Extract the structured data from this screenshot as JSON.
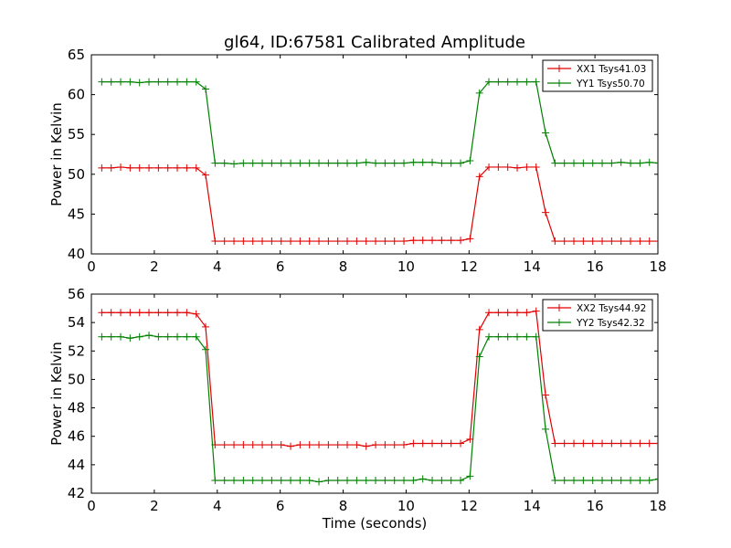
{
  "figure": {
    "title": "gl64, ID:67581 Calibrated Amplitude"
  },
  "chart_data": [
    {
      "type": "line",
      "title": "gl64, ID:67581 Calibrated Amplitude",
      "xlabel": "",
      "ylabel": "Power in Kelvin",
      "xlim": [
        0,
        18
      ],
      "ylim": [
        40,
        65
      ],
      "xticks": [
        0,
        2,
        4,
        6,
        8,
        10,
        12,
        14,
        16,
        18
      ],
      "yticks": [
        40,
        45,
        50,
        55,
        60,
        65
      ],
      "grid": false,
      "legend_position": "top-right",
      "x": [
        0.33,
        0.63,
        0.93,
        1.23,
        1.53,
        1.83,
        2.13,
        2.43,
        2.73,
        3.03,
        3.33,
        3.63,
        3.93,
        4.23,
        4.53,
        4.83,
        5.13,
        5.43,
        5.73,
        6.03,
        6.33,
        6.63,
        6.93,
        7.23,
        7.53,
        7.83,
        8.13,
        8.43,
        8.73,
        9.03,
        9.33,
        9.63,
        9.93,
        10.23,
        10.53,
        10.83,
        11.13,
        11.43,
        11.73,
        12.03,
        12.33,
        12.63,
        12.93,
        13.23,
        13.53,
        13.83,
        14.13,
        14.43,
        14.73,
        15.03,
        15.33,
        15.63,
        15.93,
        16.23,
        16.53,
        16.83,
        17.13,
        17.43,
        17.73,
        18.03
      ],
      "series": [
        {
          "name": "XX1 Tsys41.03",
          "color": "#e00000",
          "values": [
            50.8,
            50.8,
            50.9,
            50.8,
            50.8,
            50.8,
            50.8,
            50.8,
            50.8,
            50.8,
            50.8,
            49.9,
            41.6,
            41.6,
            41.6,
            41.6,
            41.6,
            41.6,
            41.6,
            41.6,
            41.6,
            41.6,
            41.6,
            41.6,
            41.6,
            41.6,
            41.6,
            41.6,
            41.6,
            41.6,
            41.6,
            41.6,
            41.6,
            41.7,
            41.7,
            41.7,
            41.7,
            41.7,
            41.7,
            41.9,
            49.7,
            50.9,
            50.9,
            50.9,
            50.8,
            50.9,
            50.9,
            45.2,
            41.6,
            41.6,
            41.6,
            41.6,
            41.6,
            41.6,
            41.6,
            41.6,
            41.6,
            41.6,
            41.6,
            41.6
          ]
        },
        {
          "name": "YY1 Tsys50.70",
          "color": "#008000",
          "values": [
            61.6,
            61.6,
            61.6,
            61.6,
            61.5,
            61.6,
            61.6,
            61.6,
            61.6,
            61.6,
            61.6,
            60.7,
            51.4,
            51.4,
            51.3,
            51.4,
            51.4,
            51.4,
            51.4,
            51.4,
            51.4,
            51.4,
            51.4,
            51.4,
            51.4,
            51.4,
            51.4,
            51.4,
            51.5,
            51.4,
            51.4,
            51.4,
            51.4,
            51.5,
            51.5,
            51.5,
            51.4,
            51.4,
            51.4,
            51.7,
            60.2,
            61.6,
            61.6,
            61.6,
            61.6,
            61.6,
            61.6,
            55.2,
            51.4,
            51.4,
            51.4,
            51.4,
            51.4,
            51.4,
            51.4,
            51.5,
            51.4,
            51.4,
            51.5,
            51.4
          ]
        }
      ]
    },
    {
      "type": "line",
      "title": "",
      "xlabel": "Time (seconds)",
      "ylabel": "Power in Kelvin",
      "xlim": [
        0,
        18
      ],
      "ylim": [
        42,
        56
      ],
      "xticks": [
        0,
        2,
        4,
        6,
        8,
        10,
        12,
        14,
        16,
        18
      ],
      "yticks": [
        42,
        44,
        46,
        48,
        50,
        52,
        54,
        56
      ],
      "grid": false,
      "legend_position": "top-right",
      "x": [
        0.33,
        0.63,
        0.93,
        1.23,
        1.53,
        1.83,
        2.13,
        2.43,
        2.73,
        3.03,
        3.33,
        3.63,
        3.93,
        4.23,
        4.53,
        4.83,
        5.13,
        5.43,
        5.73,
        6.03,
        6.33,
        6.63,
        6.93,
        7.23,
        7.53,
        7.83,
        8.13,
        8.43,
        8.73,
        9.03,
        9.33,
        9.63,
        9.93,
        10.23,
        10.53,
        10.83,
        11.13,
        11.43,
        11.73,
        12.03,
        12.33,
        12.63,
        12.93,
        13.23,
        13.53,
        13.83,
        14.13,
        14.43,
        14.73,
        15.03,
        15.33,
        15.63,
        15.93,
        16.23,
        16.53,
        16.83,
        17.13,
        17.43,
        17.73,
        18.03
      ],
      "series": [
        {
          "name": "XX2 Tsys44.92",
          "color": "#e00000",
          "values": [
            54.7,
            54.7,
            54.7,
            54.7,
            54.7,
            54.7,
            54.7,
            54.7,
            54.7,
            54.7,
            54.6,
            53.7,
            45.4,
            45.4,
            45.4,
            45.4,
            45.4,
            45.4,
            45.4,
            45.4,
            45.3,
            45.4,
            45.4,
            45.4,
            45.4,
            45.4,
            45.4,
            45.4,
            45.3,
            45.4,
            45.4,
            45.4,
            45.4,
            45.5,
            45.5,
            45.5,
            45.5,
            45.5,
            45.5,
            45.8,
            53.5,
            54.7,
            54.7,
            54.7,
            54.7,
            54.7,
            54.8,
            48.9,
            45.5,
            45.5,
            45.5,
            45.5,
            45.5,
            45.5,
            45.5,
            45.5,
            45.5,
            45.5,
            45.5,
            45.5
          ]
        },
        {
          "name": "YY2 Tsys42.32",
          "color": "#008000",
          "values": [
            53.0,
            53.0,
            53.0,
            52.9,
            53.0,
            53.1,
            53.0,
            53.0,
            53.0,
            53.0,
            53.0,
            52.1,
            42.9,
            42.9,
            42.9,
            42.9,
            42.9,
            42.9,
            42.9,
            42.9,
            42.9,
            42.9,
            42.9,
            42.8,
            42.9,
            42.9,
            42.9,
            42.9,
            42.9,
            42.9,
            42.9,
            42.9,
            42.9,
            42.9,
            43.0,
            42.9,
            42.9,
            42.9,
            42.9,
            43.2,
            51.6,
            53.0,
            53.0,
            53.0,
            53.0,
            53.0,
            53.0,
            46.5,
            42.9,
            42.9,
            42.9,
            42.9,
            42.9,
            42.9,
            42.9,
            42.9,
            42.9,
            42.9,
            42.9,
            43.0
          ]
        }
      ]
    }
  ]
}
